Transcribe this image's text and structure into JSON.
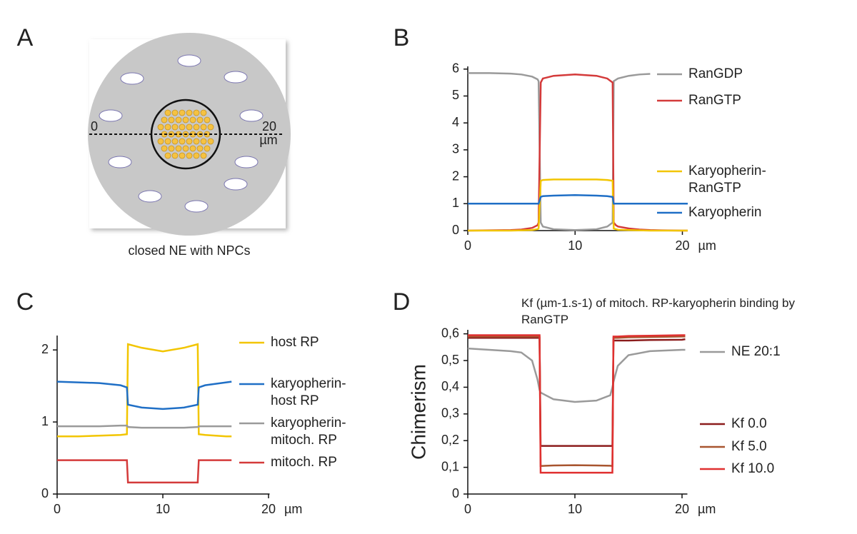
{
  "diagram": {
    "panel": "A",
    "left_label": "0",
    "right_label": "20",
    "unit": "µm",
    "caption": "closed NE with NPCs"
  },
  "chart_data": [
    {
      "type": "line",
      "panel": "B",
      "x_unit": "µm",
      "x": [
        0,
        2,
        4,
        5,
        6,
        6.5,
        6.6,
        6.8,
        7,
        8,
        10,
        12,
        13,
        13.5,
        13.6,
        13.8,
        14,
        15,
        16,
        17,
        18,
        20,
        20.5
      ],
      "xlim": [
        0,
        20.5
      ],
      "xticks": [
        0,
        10,
        20
      ],
      "ylim": [
        0,
        6.1
      ],
      "yticks": [
        0,
        1,
        2,
        3,
        4,
        5,
        6
      ],
      "series": [
        {
          "name": "RanGDP",
          "color": "#9a9a9a",
          "values": [
            5.85,
            5.85,
            5.83,
            5.8,
            5.72,
            5.62,
            5.55,
            0.3,
            0.15,
            0.05,
            0.02,
            0.05,
            0.15,
            0.3,
            5.55,
            5.6,
            5.65,
            5.75,
            5.8,
            5.82,
            null,
            null,
            null
          ]
        },
        {
          "name": "RanGTP",
          "color": "#d43a3a",
          "values": [
            0,
            0.01,
            0.02,
            0.04,
            0.1,
            0.2,
            0.3,
            5.5,
            5.65,
            5.75,
            5.8,
            5.75,
            5.65,
            5.5,
            0.3,
            0.2,
            0.15,
            0.08,
            0.04,
            0.02,
            0.01,
            0,
            0
          ]
        },
        {
          "name": "Karyopherin-RanGTP",
          "color": "#f2c500",
          "values": [
            0,
            0,
            0,
            0.01,
            0.02,
            0.05,
            0.08,
            1.85,
            1.88,
            1.9,
            1.9,
            1.9,
            1.88,
            1.85,
            0.08,
            0.05,
            0.03,
            0.02,
            0.01,
            0,
            0,
            0,
            0
          ]
        },
        {
          "name": "Karyopherin",
          "color": "#1f6fc6",
          "values": [
            1,
            1,
            1,
            1,
            1,
            1,
            1,
            1.25,
            1.28,
            1.3,
            1.32,
            1.3,
            1.28,
            1.25,
            1,
            1,
            1,
            1,
            1,
            1,
            1,
            1,
            1
          ]
        }
      ]
    },
    {
      "type": "line",
      "panel": "C",
      "x_unit": "µm",
      "x": [
        0,
        2,
        4,
        6,
        6.6,
        6.7,
        8,
        10,
        12,
        13.3,
        13.4,
        14,
        16,
        16.5
      ],
      "xlim": [
        0,
        20.1
      ],
      "xticks": [
        0,
        10,
        20
      ],
      "ylim": [
        0,
        2.2
      ],
      "yticks": [
        0,
        1,
        2
      ],
      "series": [
        {
          "name": "host RP",
          "color": "#f2c500",
          "values": [
            0.8,
            0.8,
            0.81,
            0.82,
            0.83,
            2.08,
            2.03,
            1.98,
            2.03,
            2.08,
            0.83,
            0.82,
            0.8,
            0.8
          ]
        },
        {
          "name": "karyopherin-host RP",
          "color": "#1f6fc6",
          "values": [
            1.56,
            1.55,
            1.54,
            1.51,
            1.48,
            1.24,
            1.2,
            1.18,
            1.2,
            1.24,
            1.48,
            1.51,
            1.55,
            1.56
          ]
        },
        {
          "name": "karyopherin-mitoch. RP",
          "color": "#9a9a9a",
          "values": [
            0.94,
            0.94,
            0.94,
            0.95,
            0.95,
            0.93,
            0.92,
            0.92,
            0.92,
            0.93,
            0.94,
            0.94,
            0.94,
            0.94
          ]
        },
        {
          "name": "mitoch. RP",
          "color": "#d43a3a",
          "values": [
            0.47,
            0.47,
            0.47,
            0.47,
            0.47,
            0.16,
            0.16,
            0.16,
            0.16,
            0.16,
            0.47,
            0.47,
            0.47,
            0.47
          ]
        }
      ]
    },
    {
      "type": "line",
      "panel": "D",
      "x_unit": "µm",
      "title": "Kf (µm-1.s-1) of mitoch. RP-karyopherin binding by RanGTP",
      "ylabel": "Chimerism",
      "x": [
        0,
        2,
        4,
        5,
        6,
        6.5,
        6.7,
        6.8,
        8,
        10,
        12,
        13.3,
        13.5,
        13.6,
        14,
        15,
        17,
        20,
        20.3
      ],
      "xlim": [
        0,
        20.5
      ],
      "xticks": [
        0,
        10,
        20
      ],
      "ylim": [
        0,
        0.615
      ],
      "yticks": [
        0,
        {
          "value": 0.1,
          "label": "0,1"
        },
        {
          "value": 0.2,
          "label": "0,2"
        },
        {
          "value": 0.3,
          "label": "0,3"
        },
        {
          "value": 0.4,
          "label": "0,4"
        },
        {
          "value": 0.5,
          "label": "0,5"
        },
        {
          "value": 0.6,
          "label": "0,6"
        }
      ],
      "series": [
        {
          "name": "NE 20:1",
          "color": "#9a9a9a",
          "values": [
            0.545,
            0.54,
            0.535,
            0.53,
            0.5,
            0.43,
            0.39,
            0.38,
            0.355,
            0.345,
            0.35,
            0.37,
            0.4,
            0.42,
            0.48,
            0.52,
            0.535,
            0.54,
            0.54
          ]
        },
        {
          "name": "Kf 0.0",
          "color": "#8b1c1c",
          "values": [
            0.585,
            0.585,
            0.585,
            0.585,
            0.585,
            0.585,
            0.585,
            0.18,
            0.18,
            0.18,
            0.18,
            0.18,
            0.18,
            0.575,
            0.575,
            0.575,
            0.577,
            0.578,
            0.58
          ]
        },
        {
          "name": "Kf 5.0",
          "color": "#a8552f",
          "values": [
            0.59,
            0.59,
            0.59,
            0.59,
            0.59,
            0.59,
            0.59,
            0.105,
            0.107,
            0.108,
            0.107,
            0.106,
            0.105,
            0.585,
            0.585,
            0.587,
            0.588,
            0.59,
            0.59
          ]
        },
        {
          "name": "Kf 10.0",
          "color": "#e03030",
          "values": [
            0.595,
            0.595,
            0.595,
            0.595,
            0.595,
            0.595,
            0.595,
            0.08,
            0.08,
            0.08,
            0.08,
            0.08,
            0.08,
            0.59,
            0.59,
            0.592,
            0.593,
            0.595,
            0.595
          ]
        }
      ]
    }
  ]
}
